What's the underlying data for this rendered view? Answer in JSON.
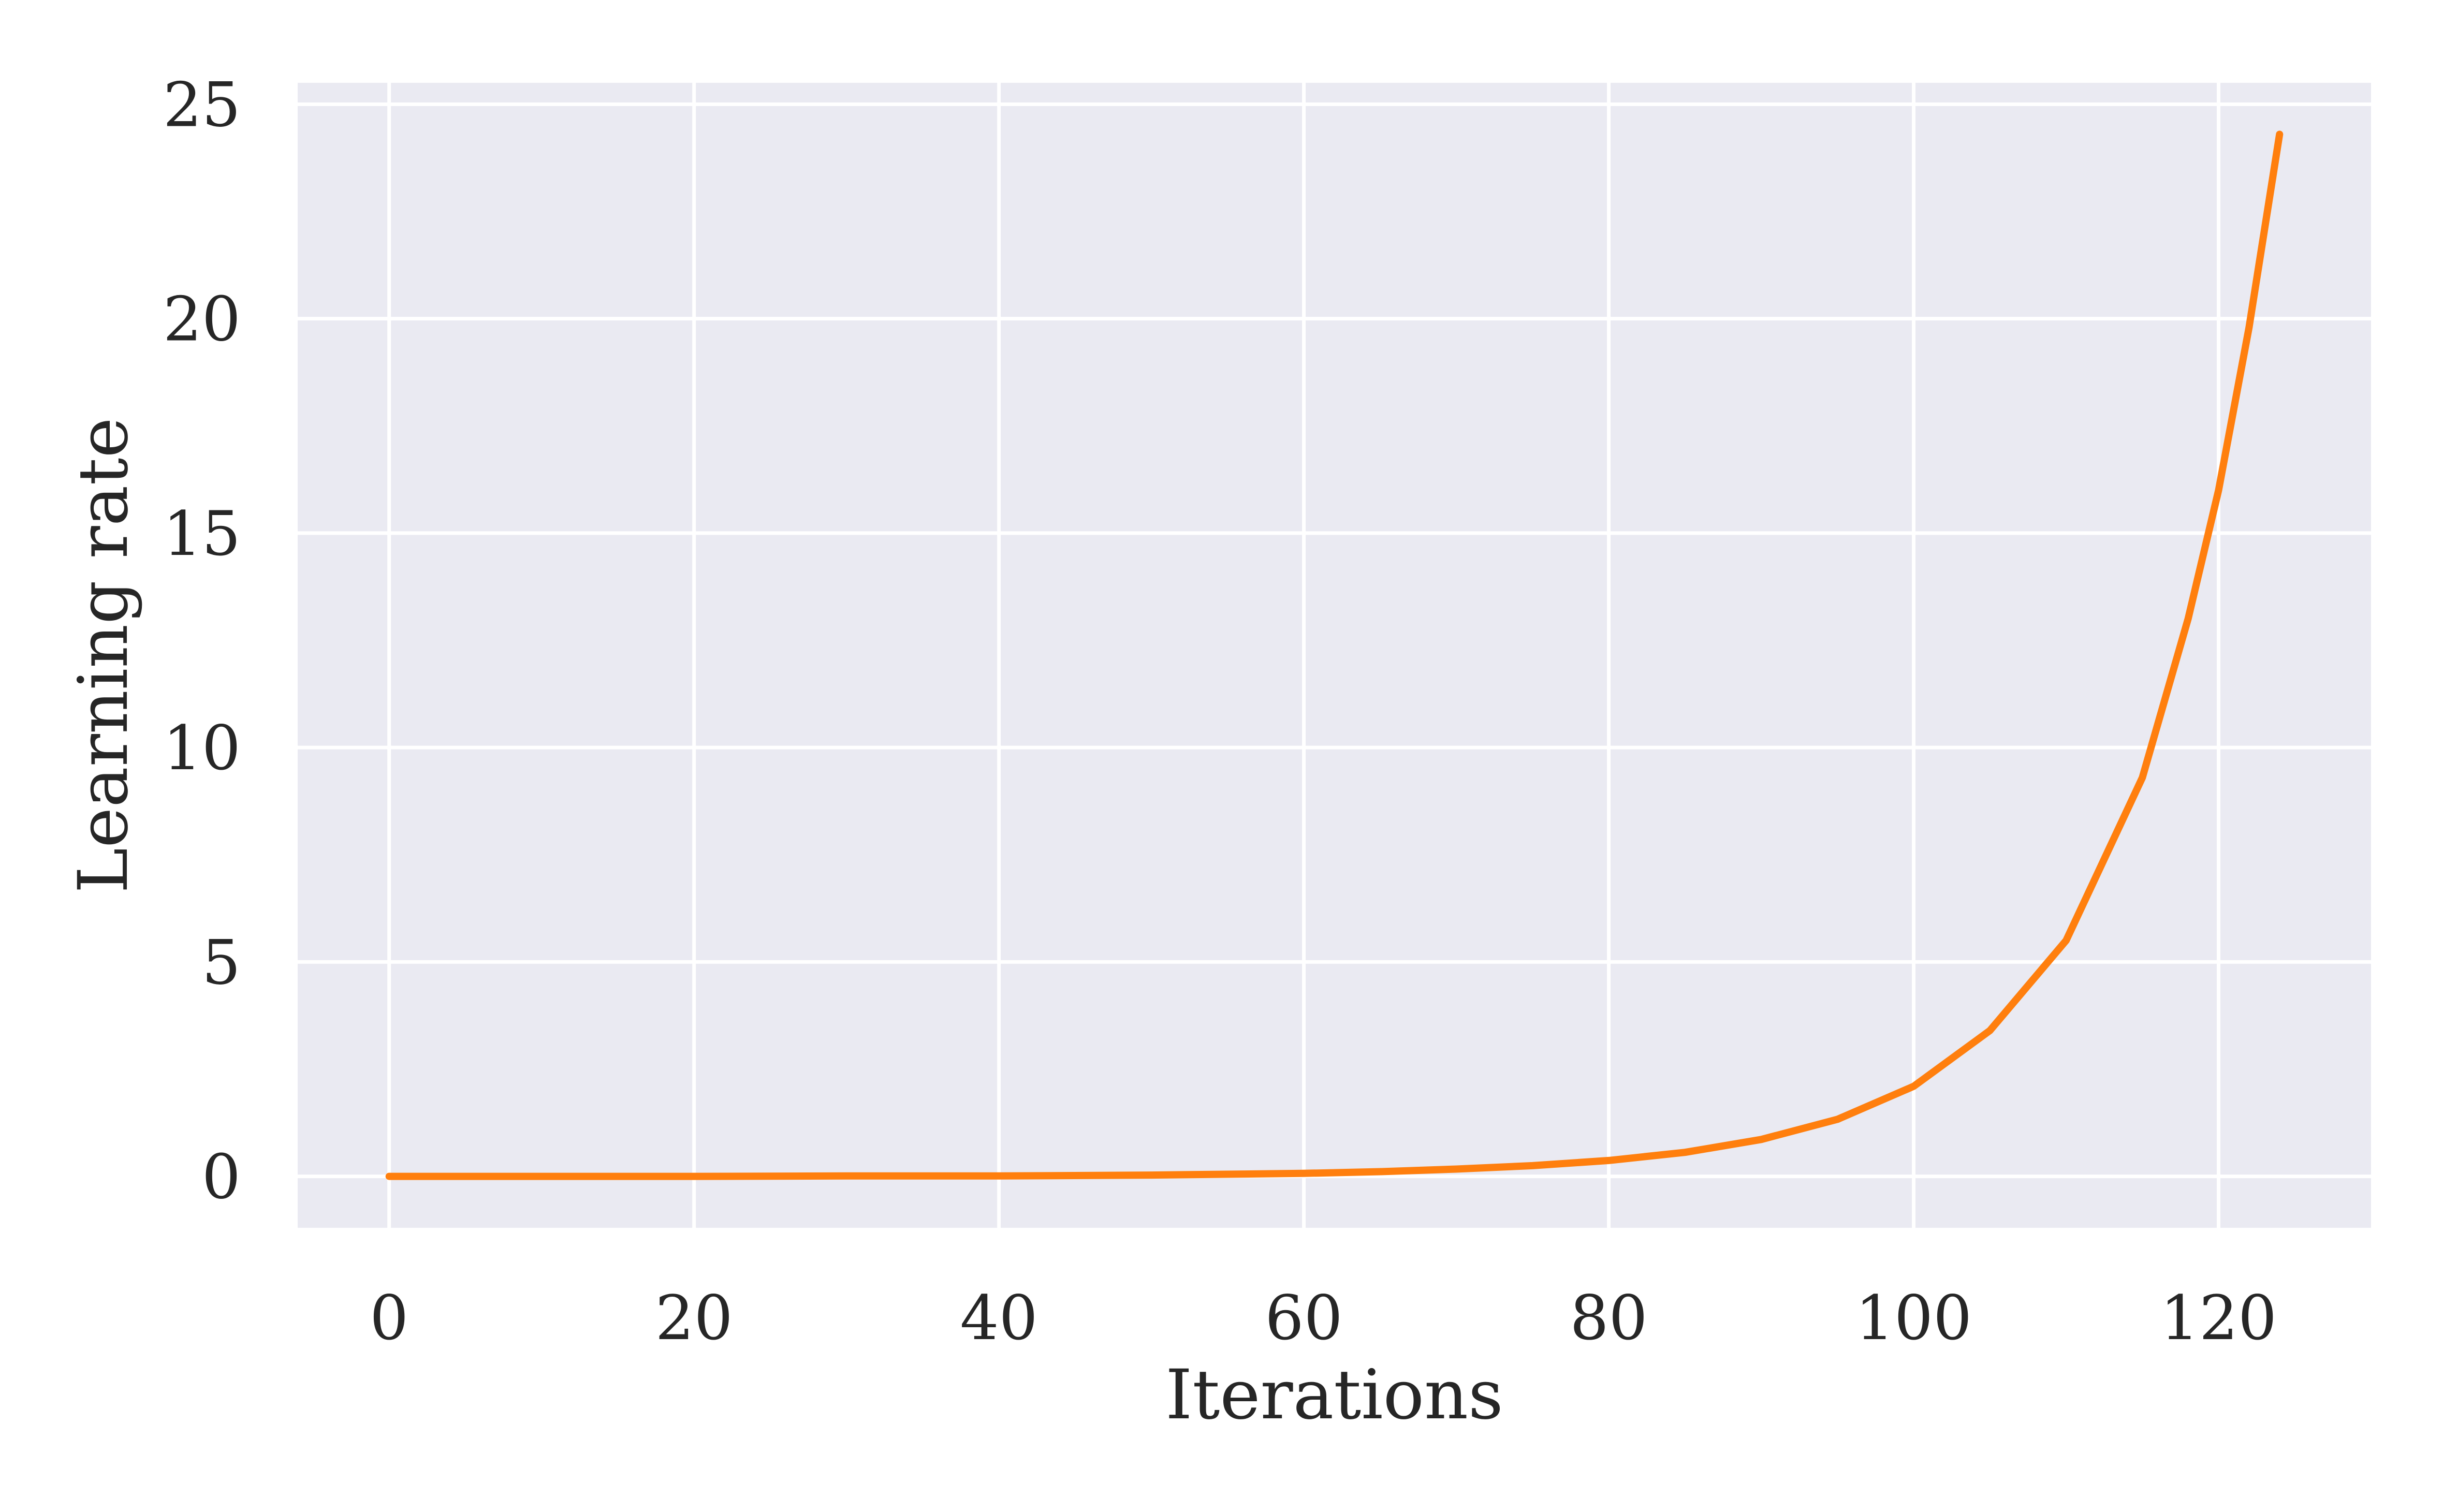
{
  "chart_data": {
    "type": "line",
    "title": "",
    "xlabel": "Iterations",
    "ylabel": "Learning rate",
    "xlim": [
      -6,
      130
    ],
    "ylim": [
      -1.2,
      25.5
    ],
    "xticks": [
      0,
      20,
      40,
      60,
      80,
      100,
      120
    ],
    "yticks": [
      0,
      5,
      10,
      15,
      20,
      25
    ],
    "xtick_labels": [
      "0",
      "20",
      "40",
      "60",
      "80",
      "100",
      "120"
    ],
    "ytick_labels": [
      "0",
      "5",
      "10",
      "15",
      "20",
      "25"
    ],
    "grid": true,
    "legend": false,
    "colors": {
      "plot_background": "#eaeaf2",
      "grid": "#ffffff",
      "line": "#ff7f0e",
      "text": "#262626"
    },
    "series": [
      {
        "x": [
          0,
          10,
          20,
          30,
          40,
          50,
          60,
          65,
          70,
          75,
          80,
          85,
          90,
          95,
          100,
          105,
          110,
          115,
          118,
          120,
          122,
          124
        ],
        "y": [
          0.0,
          0.0,
          0.0,
          0.01,
          0.01,
          0.03,
          0.07,
          0.11,
          0.17,
          0.25,
          0.37,
          0.56,
          0.86,
          1.33,
          2.1,
          3.4,
          5.5,
          9.3,
          13.0,
          16.0,
          19.8,
          24.3
        ]
      }
    ]
  }
}
